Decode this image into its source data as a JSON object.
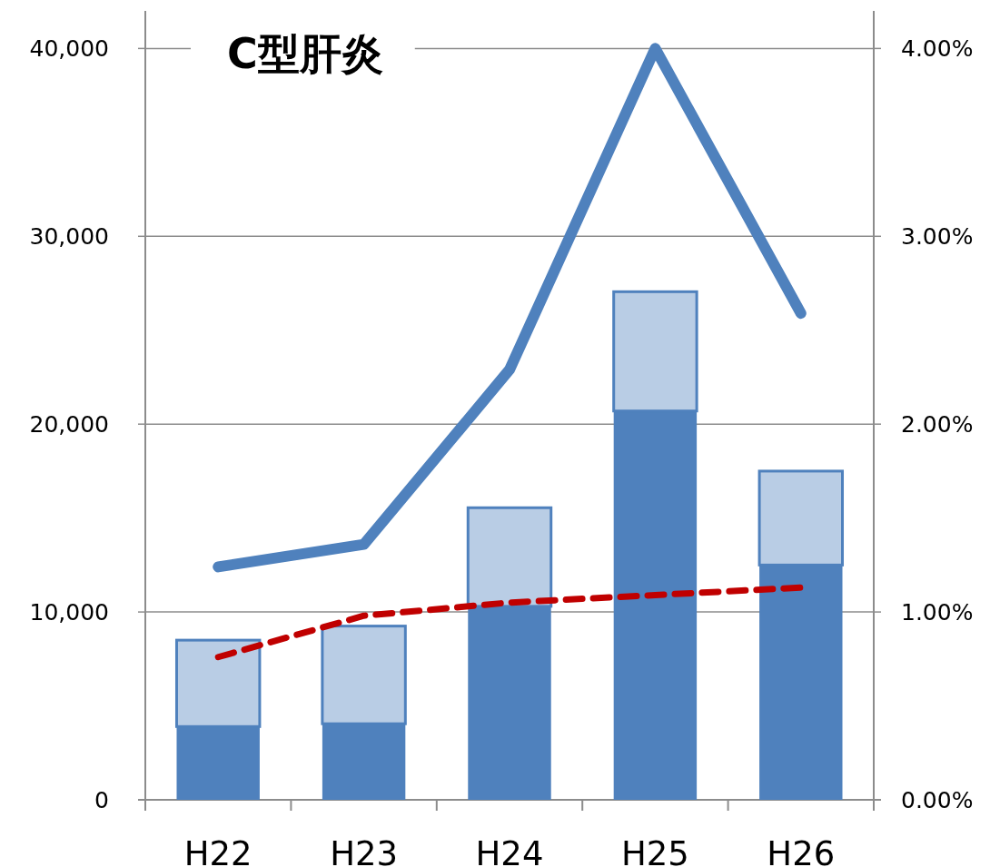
{
  "chart_data": {
    "type": "bar",
    "title": "C型肝炎",
    "categories": [
      "H22",
      "H23",
      "H24",
      "H25",
      "H26"
    ],
    "stacked": true,
    "series": [
      {
        "color": "#4f81bd",
        "values": [
          3900,
          4050,
          10300,
          20700,
          12500
        ]
      },
      {
        "color": "#b9cde5",
        "values": [
          4600,
          5200,
          5250,
          6350,
          5000
        ]
      },
      {
        "type": "line",
        "axis": "y2",
        "color": "#4f81bd",
        "values": [
          1.24,
          1.36,
          2.29,
          4.0,
          2.59
        ]
      },
      {
        "type": "line",
        "axis": "y2",
        "color": "#c00000",
        "line_style": "dashed",
        "values": [
          0.76,
          0.98,
          1.05,
          1.09,
          1.13
        ]
      }
    ],
    "ylim": [
      0,
      42000
    ],
    "yticks": [
      {
        "value": 0,
        "label": "0"
      },
      {
        "value": 10000,
        "label": "10,000"
      },
      {
        "value": 20000,
        "label": "20,000"
      },
      {
        "value": 30000,
        "label": "30,000"
      },
      {
        "value": 40000,
        "label": "40,000"
      }
    ],
    "y2lim": [
      0,
      4.2
    ],
    "y2ticks": [
      {
        "value": 0,
        "label": "0.00%"
      },
      {
        "value": 1,
        "label": "1.00%"
      },
      {
        "value": 2,
        "label": "2.00%"
      },
      {
        "value": 3,
        "label": "3.00%"
      },
      {
        "value": 4,
        "label": "4.00%"
      }
    ],
    "grid": "y"
  }
}
